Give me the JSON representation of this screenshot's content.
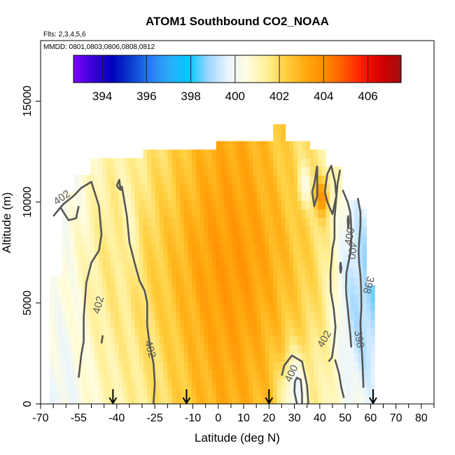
{
  "chart_data": {
    "type": "heatmap",
    "title": "ATOM1 Southbound CO2_NOAA",
    "subtitle_flights": "Flts: 2,3,4,5,6",
    "subtitle_dates": "MMDD: 0801,0803,0806,0808,0812",
    "xlabel": "Latitude (deg N)",
    "ylabel": "Altitude (m)",
    "xlim": [
      -70,
      85
    ],
    "ylim": [
      0,
      18000
    ],
    "x_ticks": [
      -70,
      -55,
      -40,
      -25,
      -10,
      0,
      10,
      20,
      30,
      40,
      50,
      60,
      70,
      80
    ],
    "x_minor_ticks": [
      -65,
      -60,
      -50,
      -45,
      -35,
      -30,
      -20,
      -15,
      -5,
      5,
      15,
      25,
      35,
      45,
      55,
      65,
      75,
      85
    ],
    "y_ticks": [
      0,
      5000,
      10000,
      15000
    ],
    "colorbar": {
      "range": [
        392.7,
        407.5
      ],
      "ticks": [
        394,
        396,
        398,
        400,
        402,
        404,
        406
      ],
      "colors": [
        "#7f00ff",
        "#3a00d8",
        "#0000b8",
        "#0a3fd0",
        "#2a7cf5",
        "#2aaef8",
        "#00c8ff",
        "#9ed6ff",
        "#e8f4ff",
        "#fffde0",
        "#fff09a",
        "#ffd040",
        "#ffaa10",
        "#ff8c00",
        "#ff5a00",
        "#ff1a00",
        "#d20000",
        "#a01010"
      ]
    },
    "contour_labels": [
      "402",
      "402",
      "402",
      "402",
      "400",
      "400",
      "398",
      "398",
      "400"
    ],
    "arrow_latitudes": [
      -41.5,
      -12.5,
      20,
      61
    ],
    "field_description": "CO2 mole fraction (ppm) curtain, latitude vs altitude; mostly 401-404 ppm with lower values (396-399 ppm) north of 45N"
  }
}
